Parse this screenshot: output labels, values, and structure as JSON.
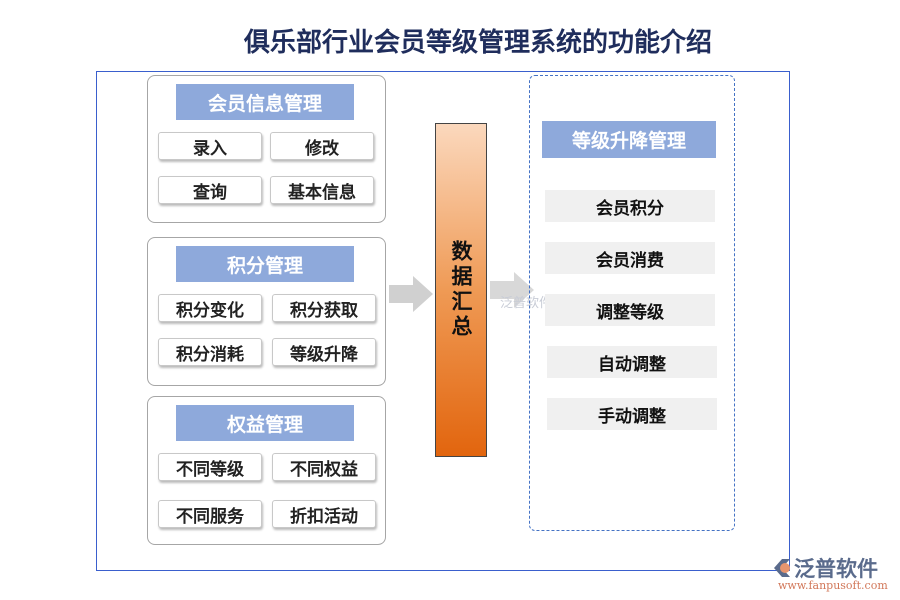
{
  "title": "俱乐部行业会员等级管理系统的功能介绍",
  "panels": [
    {
      "header": "会员信息管理",
      "buttons": [
        "录入",
        "修改",
        "查询",
        "基本信息"
      ]
    },
    {
      "header": "积分管理",
      "buttons": [
        "积分变化",
        "积分获取",
        "积分消耗",
        "等级升降"
      ]
    },
    {
      "header": "权益管理",
      "buttons": [
        "不同等级",
        "不同权益",
        "不同服务",
        "折扣活动"
      ]
    }
  ],
  "center": "数据汇总",
  "right": {
    "header": "等级升降管理",
    "items": [
      "会员积分",
      "会员消费",
      "调整等级",
      "自动调整",
      "手动调整"
    ]
  },
  "watermark": "泛普软件",
  "logo": {
    "name": "泛普软件",
    "url": "www.fanpusoft.com"
  },
  "colors": {
    "header": "#8ea9db",
    "frame": "#3a5fcd",
    "center_top": "#fbd8bd",
    "center_bottom": "#e2650e"
  }
}
